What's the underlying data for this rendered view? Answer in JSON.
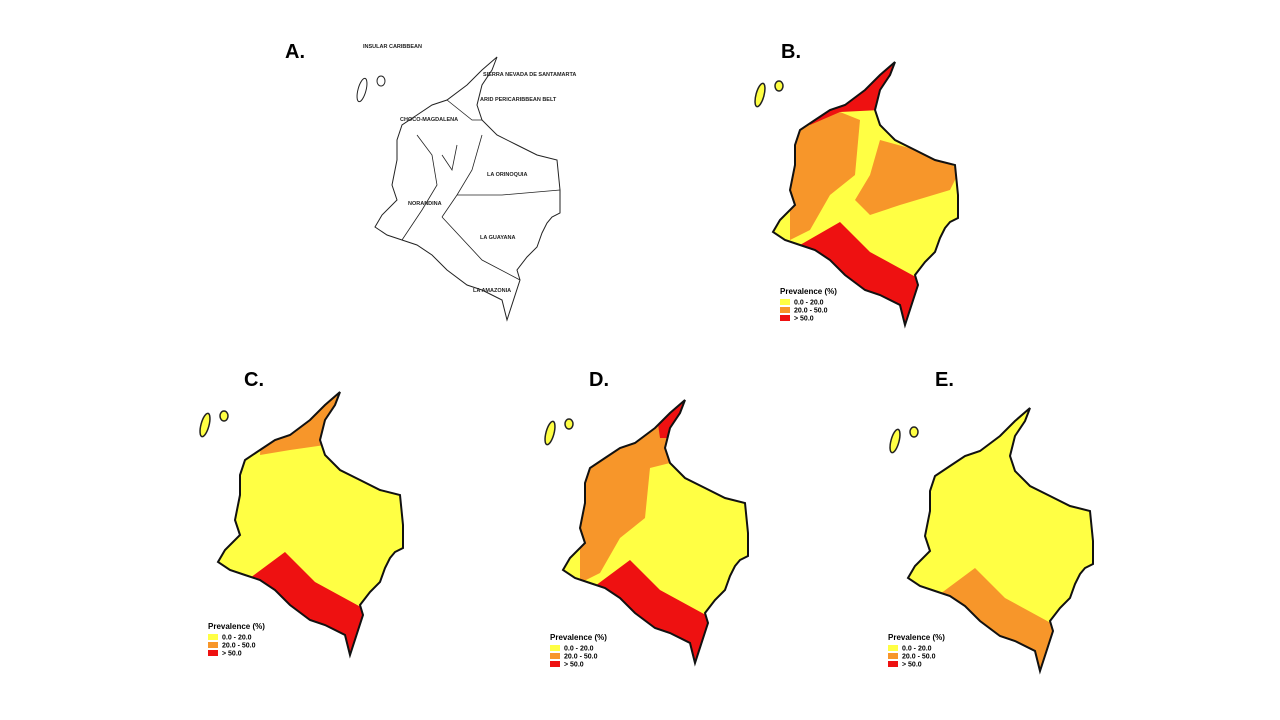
{
  "panels": [
    {
      "label": "A.",
      "regions": [
        "INSULAR CARIBBEAN",
        "SIERRA NEVADA DE SANTAMARTA",
        "ARID PERICARIBBEAN BELT",
        "CHOCO-MAGDALENA",
        "LA ORINOQUIA",
        "NORANDINA",
        "LA GUAYANA",
        "LA AMAZONIA"
      ]
    },
    {
      "label": "B.",
      "legend": {
        "title": "Prevalence (%)",
        "items": [
          {
            "label": "0.0 - 20.0",
            "color": "#ffff44"
          },
          {
            "label": "20.0 - 50.0",
            "color": "#f7962a"
          },
          {
            "label": "> 50.0",
            "color": "#ee1111"
          }
        ]
      }
    },
    {
      "label": "C.",
      "legend": {
        "title": "Prevalence (%)",
        "items": [
          {
            "label": "0.0 - 20.0",
            "color": "#ffff44"
          },
          {
            "label": "20.0 - 50.0",
            "color": "#f7962a"
          },
          {
            "label": "> 50.0",
            "color": "#ee1111"
          }
        ]
      }
    },
    {
      "label": "D.",
      "legend": {
        "title": "Prevalence (%)",
        "items": [
          {
            "label": "0.0 - 20.0",
            "color": "#ffff44"
          },
          {
            "label": "20.0 - 50.0",
            "color": "#f7962a"
          },
          {
            "label": "> 50.0",
            "color": "#ee1111"
          }
        ]
      }
    },
    {
      "label": "E.",
      "legend": {
        "title": "Prevalence (%)",
        "items": [
          {
            "label": "0.0 - 20.0",
            "color": "#ffff44"
          },
          {
            "label": "20.0 - 50.0",
            "color": "#f7962a"
          },
          {
            "label": "> 50.0",
            "color": "#ee1111"
          }
        ]
      }
    }
  ]
}
